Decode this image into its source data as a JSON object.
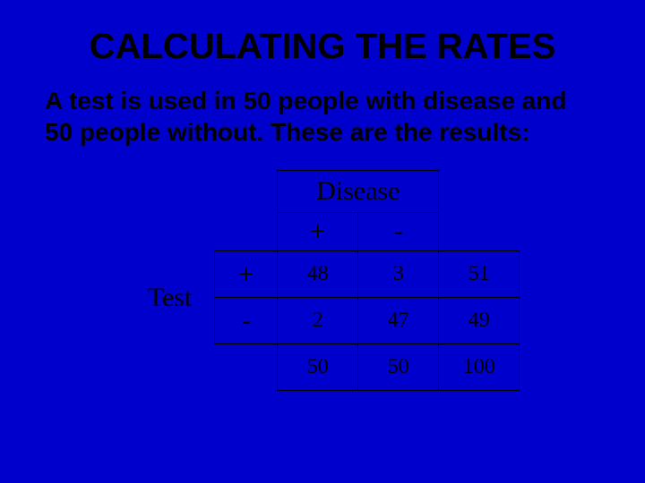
{
  "background_color": "#0000cc",
  "text_color": "#000000",
  "title": "CALCULATING THE RATES",
  "title_fontsize": 40,
  "description": "A test is used in 50 people with disease and 50 people without.  These are the results:",
  "description_fontsize": 28,
  "table": {
    "type": "table",
    "col_header_label": "Disease",
    "row_header_label": "Test",
    "col_signs": [
      "+",
      "-"
    ],
    "row_signs": [
      "+",
      "-"
    ],
    "cells": {
      "r1c1": "48",
      "r1c2": "3",
      "r1total": "51",
      "r2c1": "2",
      "r2c2": "47",
      "r2total": "49",
      "coltotal1": "50",
      "coltotal2": "50",
      "grandtotal": "100"
    },
    "border_color": "#000000",
    "header_fontsize": 30,
    "data_fontsize": 24
  }
}
